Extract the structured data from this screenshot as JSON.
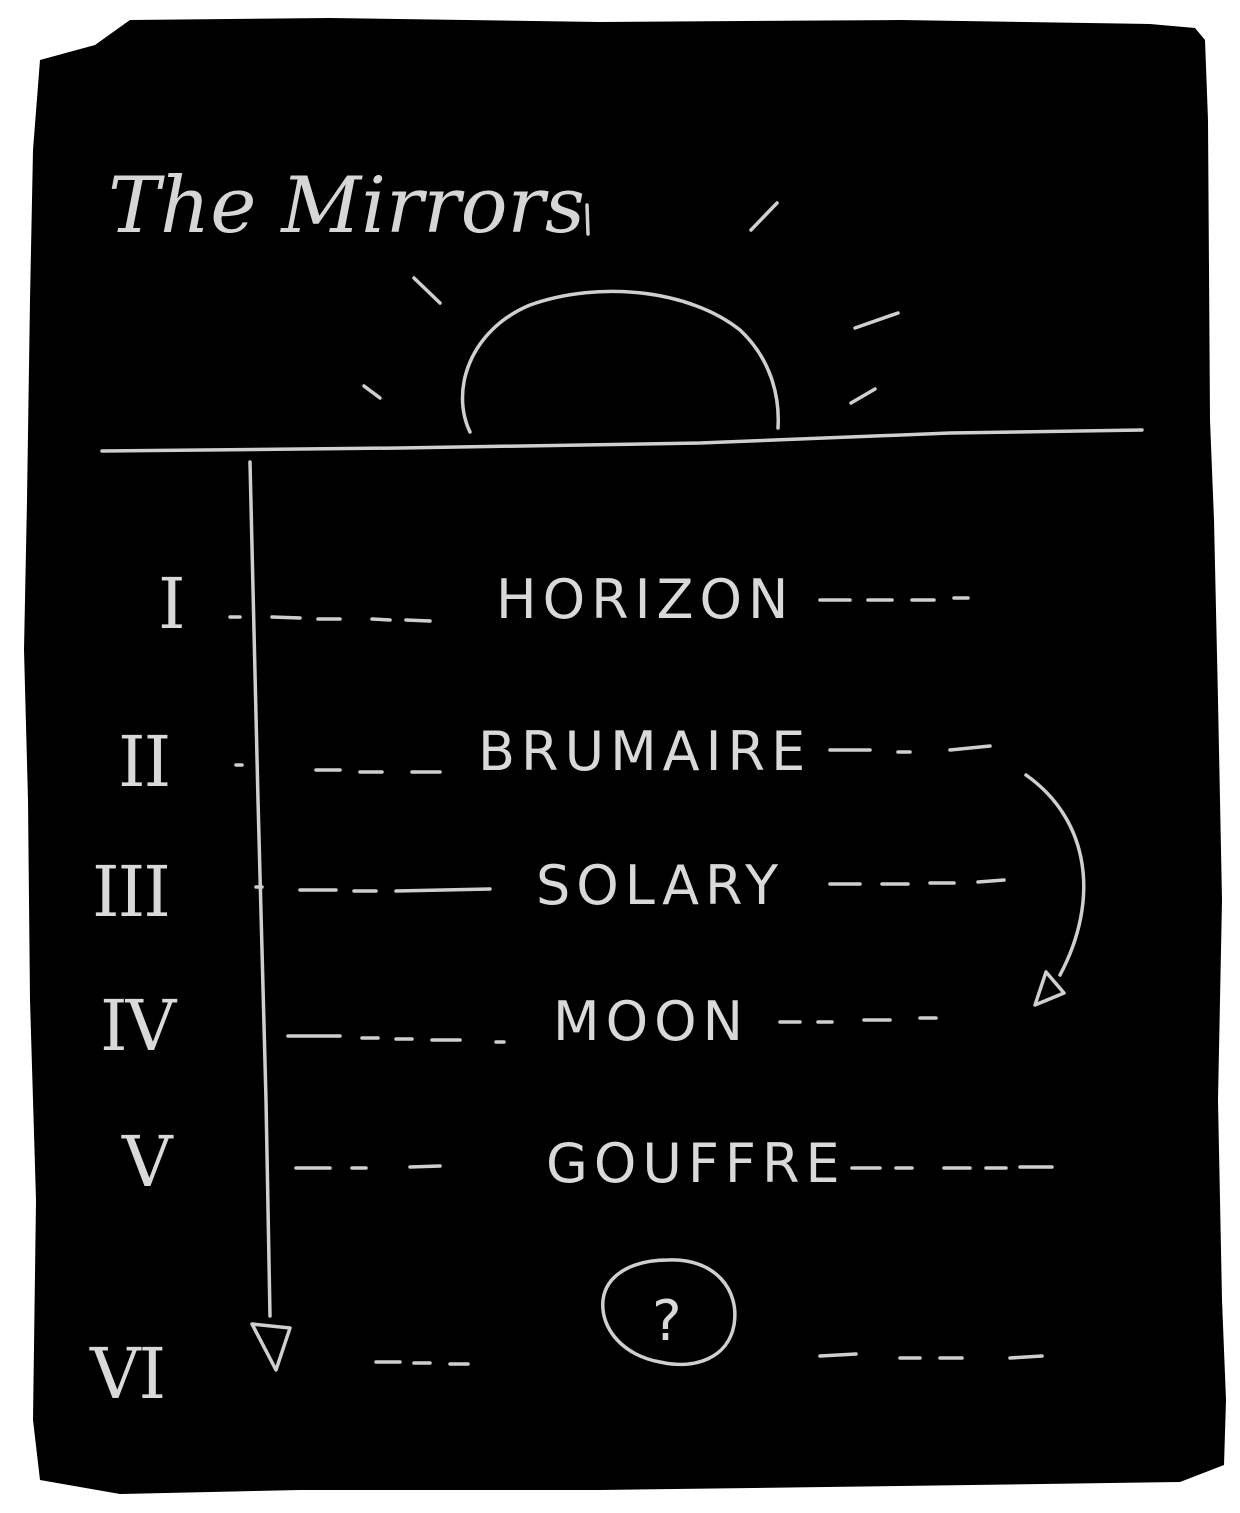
{
  "title": "The Mirrors",
  "levels": [
    {
      "numeral": "I",
      "name": "HORIZON"
    },
    {
      "numeral": "II",
      "name": "BRUMAIRE"
    },
    {
      "numeral": "III",
      "name": "SOLARY"
    },
    {
      "numeral": "IV",
      "name": "MOON"
    },
    {
      "numeral": "V",
      "name": "GOUFFRE"
    },
    {
      "numeral": "VI",
      "name": "?"
    }
  ],
  "colors": {
    "board": "#000000",
    "chalk": "#d9d9d9"
  }
}
